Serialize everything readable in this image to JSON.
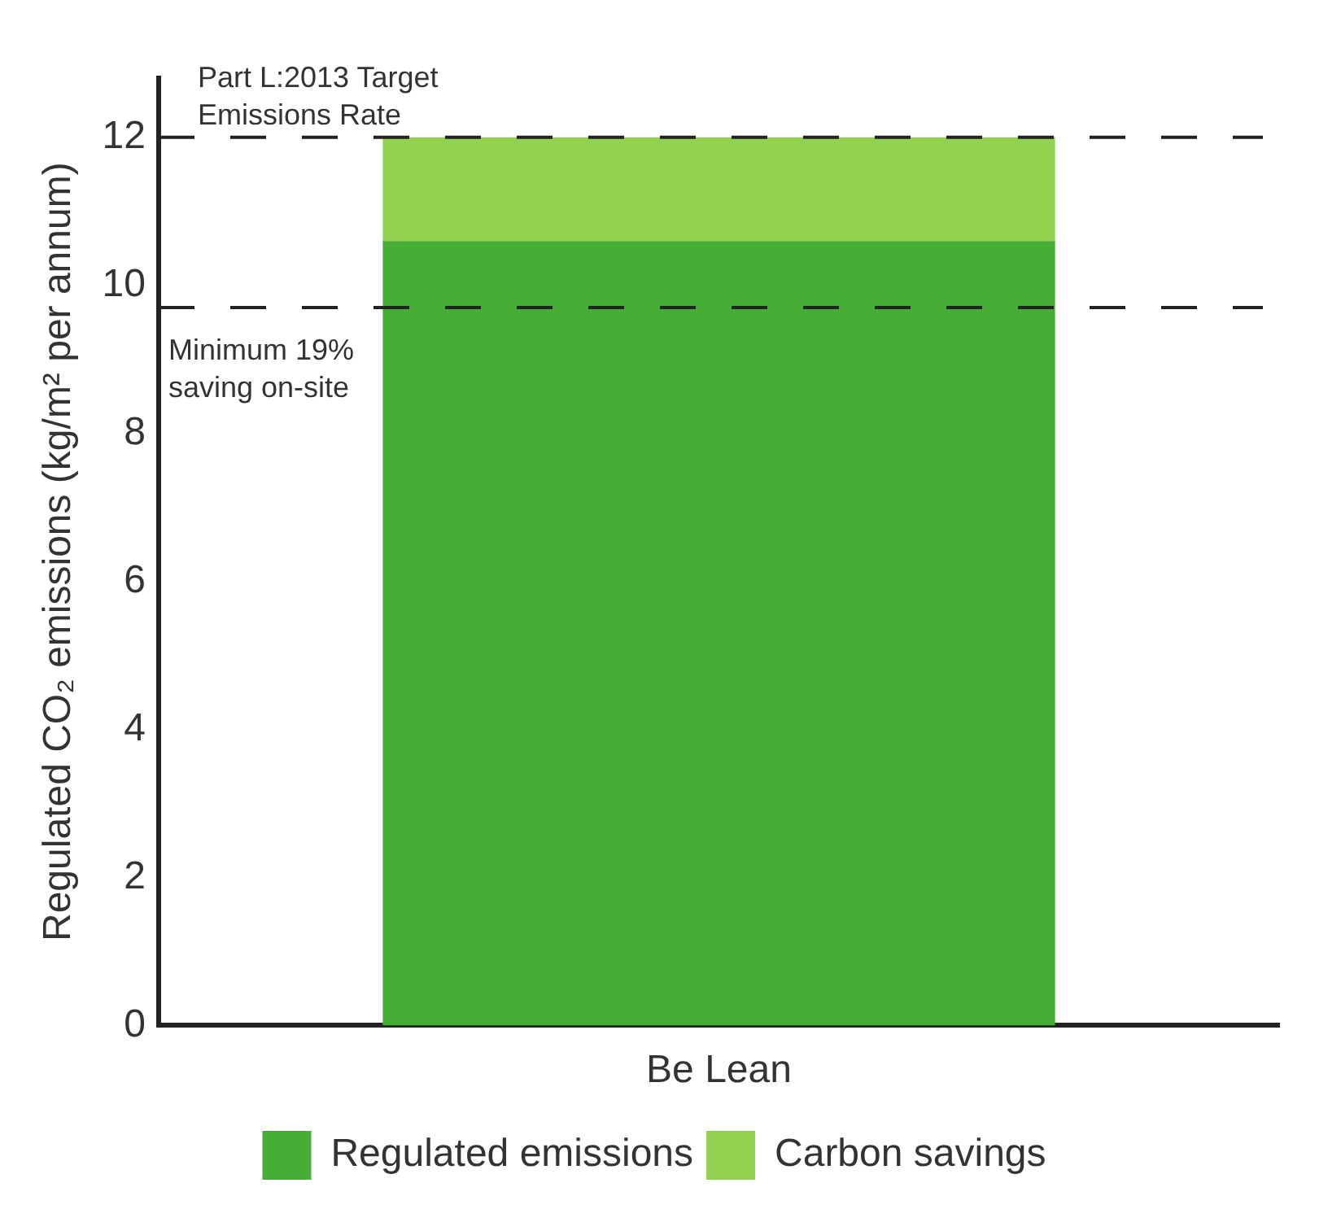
{
  "chart_data": {
    "type": "bar",
    "stacked": true,
    "categories": [
      "Be Lean"
    ],
    "series": [
      {
        "name": "Regulated emissions",
        "color": "#46ad35",
        "values": [
          10.6
        ]
      },
      {
        "name": "Carbon savings",
        "color": "#93d251",
        "values": [
          1.4
        ]
      }
    ],
    "ylabel": "Regulated CO₂ emissions (kg/m² per annum)",
    "ylim": [
      0,
      12.8
    ],
    "yticks": [
      0,
      2,
      4,
      6,
      8,
      10,
      12
    ],
    "ref_lines": [
      {
        "axis": "y",
        "value": 12,
        "color": "#222222",
        "line_style": "dashed"
      },
      {
        "axis": "y",
        "value": 9.7,
        "color": "#222222",
        "line_style": "dashed"
      }
    ],
    "annotations": [
      "Part L:2013 Target Emissions Rate",
      "Minimum 19% saving on-site"
    ],
    "grid": false,
    "legend": "bottom"
  }
}
